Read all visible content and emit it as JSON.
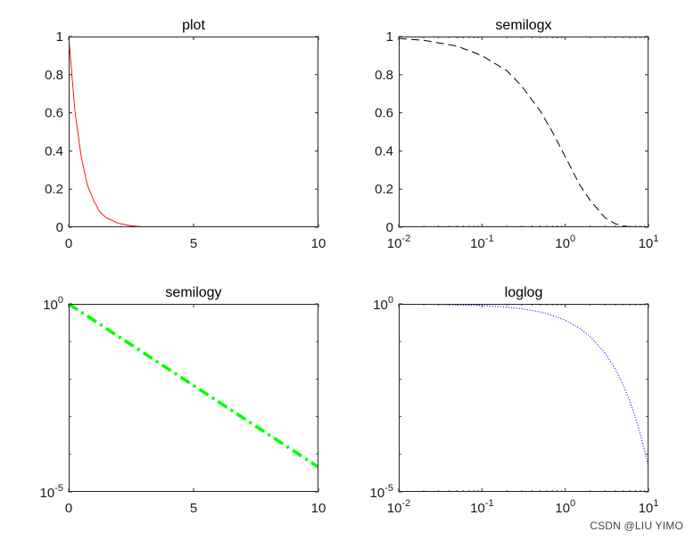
{
  "chart_data": [
    {
      "type": "line",
      "title": "plot",
      "xscale": "linear",
      "yscale": "linear",
      "xlim": [
        0,
        10
      ],
      "ylim": [
        0,
        1
      ],
      "xticks": [
        {
          "v": 0,
          "label": "0"
        },
        {
          "v": 5,
          "label": "5"
        },
        {
          "v": 10,
          "label": "10"
        }
      ],
      "yticks": [
        {
          "v": 0,
          "label": "0"
        },
        {
          "v": 0.2,
          "label": "0.2"
        },
        {
          "v": 0.4,
          "label": "0.4"
        },
        {
          "v": 0.6,
          "label": "0.6"
        },
        {
          "v": 0.8,
          "label": "0.8"
        },
        {
          "v": 1,
          "label": "1"
        }
      ],
      "grid": false,
      "series": [
        {
          "color": "#ff0000",
          "line_style": "solid",
          "x": [
            0,
            0.25,
            0.5,
            0.75,
            1,
            1.25,
            1.5,
            2,
            2.5,
            3,
            3.5,
            4,
            5,
            6,
            7,
            8,
            9,
            10
          ],
          "y": [
            1,
            0.61,
            0.37,
            0.22,
            0.14,
            0.08,
            0.05,
            0.02,
            0.007,
            0.002,
            0.001,
            0.0003,
            5e-05,
            0,
            0,
            0,
            0,
            0
          ]
        }
      ]
    },
    {
      "type": "line",
      "title": "semilogx",
      "xscale": "log",
      "yscale": "linear",
      "xlim": [
        0.01,
        10
      ],
      "ylim": [
        0,
        1
      ],
      "xticks": [
        {
          "v": 0.01,
          "base": "10",
          "exp": "-2"
        },
        {
          "v": 0.1,
          "base": "10",
          "exp": "-1"
        },
        {
          "v": 1,
          "base": "10",
          "exp": "0"
        },
        {
          "v": 10,
          "base": "10",
          "exp": "1"
        }
      ],
      "yticks": [
        {
          "v": 0,
          "label": "0"
        },
        {
          "v": 0.2,
          "label": "0.2"
        },
        {
          "v": 0.4,
          "label": "0.4"
        },
        {
          "v": 0.6,
          "label": "0.6"
        },
        {
          "v": 0.8,
          "label": "0.8"
        },
        {
          "v": 1,
          "label": "1"
        }
      ],
      "grid": false,
      "series": [
        {
          "color": "#000000",
          "line_style": "dashed",
          "x": [
            0.01,
            0.02,
            0.05,
            0.1,
            0.2,
            0.3,
            0.5,
            0.7,
            1,
            1.5,
            2,
            3,
            4,
            5,
            6,
            8,
            10
          ],
          "y": [
            0.99,
            0.98,
            0.95,
            0.9,
            0.82,
            0.74,
            0.61,
            0.5,
            0.37,
            0.22,
            0.14,
            0.05,
            0.018,
            0.007,
            0.002,
            0.0003,
            5e-05
          ]
        }
      ]
    },
    {
      "type": "line",
      "title": "semilogy",
      "xscale": "linear",
      "yscale": "log",
      "xlim": [
        0,
        10
      ],
      "ylim": [
        1e-05,
        1
      ],
      "xticks": [
        {
          "v": 0,
          "label": "0"
        },
        {
          "v": 5,
          "label": "5"
        },
        {
          "v": 10,
          "label": "10"
        }
      ],
      "yticks": [
        {
          "v": 1e-05,
          "base": "10",
          "exp": "-5"
        },
        {
          "v": 1,
          "base": "10",
          "exp": "0"
        }
      ],
      "grid": false,
      "series": [
        {
          "color": "#00ff00",
          "line_style": "dash-dot",
          "x": [
            0,
            10
          ],
          "y": [
            1,
            4.54e-05
          ]
        }
      ]
    },
    {
      "type": "line",
      "title": "loglog",
      "xscale": "log",
      "yscale": "log",
      "xlim": [
        0.01,
        10
      ],
      "ylim": [
        1e-05,
        1
      ],
      "xticks": [
        {
          "v": 0.01,
          "base": "10",
          "exp": "-2"
        },
        {
          "v": 0.1,
          "base": "10",
          "exp": "-1"
        },
        {
          "v": 1,
          "base": "10",
          "exp": "0"
        },
        {
          "v": 10,
          "base": "10",
          "exp": "1"
        }
      ],
      "yticks": [
        {
          "v": 1e-05,
          "base": "10",
          "exp": "-5"
        },
        {
          "v": 1,
          "base": "10",
          "exp": "0"
        }
      ],
      "grid": false,
      "series": [
        {
          "color": "#0000ff",
          "line_style": "dotted",
          "x": [
            0.01,
            0.03,
            0.1,
            0.2,
            0.3,
            0.5,
            0.7,
            1,
            1.5,
            2,
            3,
            4,
            5,
            6,
            7,
            8,
            9,
            10
          ],
          "y": [
            0.99,
            0.97,
            0.905,
            0.82,
            0.74,
            0.607,
            0.497,
            0.368,
            0.223,
            0.135,
            0.0498,
            0.0183,
            0.00674,
            0.00248,
            0.000912,
            0.000335,
            0.000123,
            4.54e-05
          ]
        }
      ]
    }
  ],
  "watermark": "CSDN @LIU YIMO"
}
